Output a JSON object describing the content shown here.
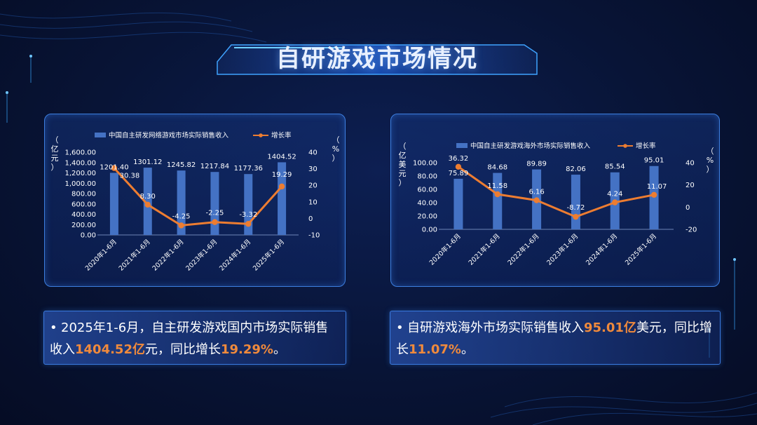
{
  "page": {
    "title": "自研游戏市场情况"
  },
  "colors": {
    "bar": "#4472c4",
    "line": "#ed7d31",
    "label": "#ffffff",
    "highlight": "#f08a3c"
  },
  "chart_data": [
    {
      "type": "bar",
      "categories": [
        "2020年1-6月",
        "2021年1-6月",
        "2022年1-6月",
        "2023年1-6月",
        "2024年1-6月",
        "2025年1-6月"
      ],
      "series": [
        {
          "name": "中国自主研发网络游戏市场实际销售收入",
          "type": "bar",
          "axis": "left",
          "values": [
            1201.4,
            1301.12,
            1245.82,
            1217.84,
            1177.36,
            1404.52
          ],
          "labels": [
            "1201.40",
            "1301.12",
            "1245.82",
            "1217.84",
            "1177.36",
            "1404.52"
          ]
        },
        {
          "name": "增长率",
          "type": "line",
          "axis": "right",
          "values": [
            30.38,
            8.3,
            -4.25,
            -2.25,
            -3.32,
            19.29
          ],
          "labels": [
            "30.38",
            "8.30",
            "-4.25",
            "-2.25",
            "-3.32",
            "19.29"
          ]
        }
      ],
      "ylabel_left": [
        "（",
        "亿",
        "元",
        "）"
      ],
      "ylabel_right": [
        "（",
        "%",
        "）"
      ],
      "ylim_left": [
        0,
        1600
      ],
      "yticks_left": [
        "1,600.00",
        "1,400.00",
        "1,200.00",
        "1,000.00",
        "800.00",
        "600.00",
        "400.00",
        "200.00",
        "0.00"
      ],
      "ylim_right": [
        -10,
        40
      ],
      "yticks_right": [
        "40",
        "30",
        "20",
        "10",
        "0",
        "-10"
      ],
      "legend": "top"
    },
    {
      "type": "bar",
      "categories": [
        "2020年1-6月",
        "2021年1-6月",
        "2022年1-6月",
        "2023年1-6月",
        "2024年1-6月",
        "2025年1-6月"
      ],
      "series": [
        {
          "name": "中国自主研发游戏海外市场实际销售收入",
          "type": "bar",
          "axis": "left",
          "values": [
            75.89,
            84.68,
            89.89,
            82.06,
            85.54,
            95.01
          ],
          "labels": [
            "75.89",
            "84.68",
            "89.89",
            "82.06",
            "85.54",
            "95.01"
          ]
        },
        {
          "name": "增长率",
          "type": "line",
          "axis": "right",
          "values": [
            36.32,
            11.58,
            6.16,
            -8.72,
            4.24,
            11.07
          ],
          "labels": [
            "36.32",
            "11.58",
            "6.16",
            "-8.72",
            "4.24",
            "11.07"
          ]
        }
      ],
      "ylabel_left": [
        "（",
        "亿",
        "美",
        "元",
        "）"
      ],
      "ylabel_right": [
        "（",
        "%",
        "）"
      ],
      "ylim_left": [
        0,
        100
      ],
      "yticks_left": [
        "100.00",
        "80.00",
        "60.00",
        "40.00",
        "20.00",
        "0.00"
      ],
      "ylim_right": [
        -20,
        40
      ],
      "yticks_right": [
        "40",
        "20",
        "0",
        "-20"
      ],
      "legend": "top"
    }
  ],
  "notes": [
    {
      "bullet": "•",
      "parts": [
        {
          "text": "2025年1-6月，自主研发游戏国内市场实际销售收入",
          "hl": false
        },
        {
          "text": "1404.52亿",
          "hl": true
        },
        {
          "text": "元，同比增长",
          "hl": false
        },
        {
          "text": "19.29%",
          "hl": true
        },
        {
          "text": "。",
          "hl": false
        }
      ]
    },
    {
      "bullet": "•",
      "parts": [
        {
          "text": "自研游戏海外市场实际销售收入",
          "hl": false
        },
        {
          "text": "95.01亿",
          "hl": true
        },
        {
          "text": "美元，同比增长",
          "hl": false
        },
        {
          "text": "11.07%",
          "hl": true
        },
        {
          "text": "。",
          "hl": false
        }
      ]
    }
  ]
}
